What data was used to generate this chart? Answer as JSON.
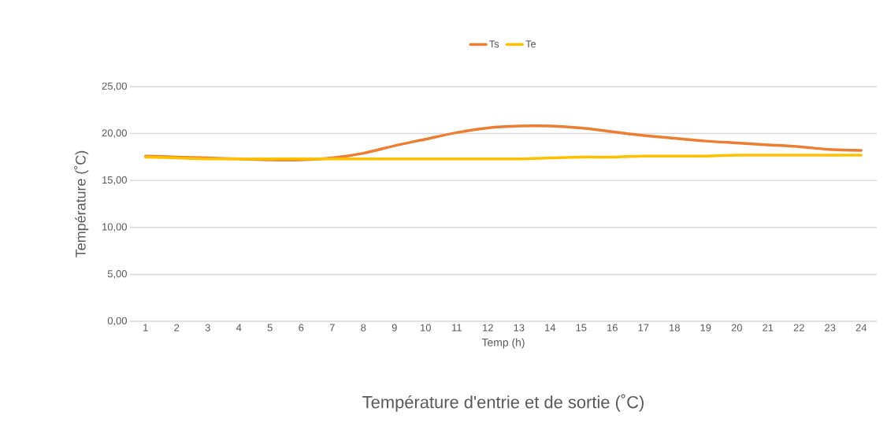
{
  "chart_data": {
    "type": "line",
    "title": "Température d'entrie  et de sortie  (˚C)",
    "xlabel": "Temp (h)",
    "ylabel": "Température (˚C)",
    "categories": [
      "1",
      "2",
      "3",
      "4",
      "5",
      "6",
      "7",
      "8",
      "9",
      "10",
      "11",
      "12",
      "13",
      "14",
      "15",
      "16",
      "17",
      "18",
      "19",
      "20",
      "21",
      "22",
      "23",
      "24"
    ],
    "series": [
      {
        "name": "Ts",
        "color": "#ed7d31",
        "values": [
          17.6,
          17.5,
          17.4,
          17.3,
          17.2,
          17.2,
          17.4,
          17.9,
          18.7,
          19.4,
          20.1,
          20.6,
          20.8,
          20.8,
          20.6,
          20.2,
          19.8,
          19.5,
          19.2,
          19.0,
          18.8,
          18.6,
          18.3,
          18.2
        ]
      },
      {
        "name": "Te",
        "color": "#ffc000",
        "values": [
          17.5,
          17.4,
          17.3,
          17.3,
          17.3,
          17.3,
          17.3,
          17.3,
          17.3,
          17.3,
          17.3,
          17.3,
          17.3,
          17.4,
          17.5,
          17.5,
          17.6,
          17.6,
          17.6,
          17.7,
          17.7,
          17.7,
          17.7,
          17.7
        ]
      }
    ],
    "ylim": [
      0,
      25
    ],
    "yticks": [
      {
        "value": 0,
        "label": "0,00"
      },
      {
        "value": 5,
        "label": "5,00"
      },
      {
        "value": 10,
        "label": "10,00"
      },
      {
        "value": 15,
        "label": "15,00"
      },
      {
        "value": 20,
        "label": "20,00"
      },
      {
        "value": 25,
        "label": "25,00"
      }
    ],
    "grid": "y",
    "legend": "top"
  }
}
